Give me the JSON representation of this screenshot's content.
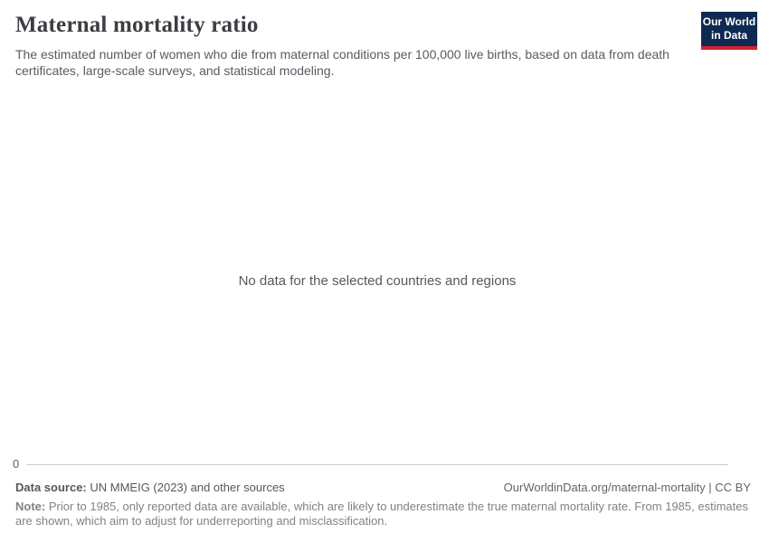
{
  "header": {
    "title": "Maternal mortality ratio",
    "subtitle": "The estimated number of women who die from maternal conditions per 100,000 live births, based on data from death certificates, large-scale surveys, and statistical modeling."
  },
  "logo": {
    "line1": "Our World",
    "line2": "in Data",
    "background_color": "#0e2a52",
    "accent_color": "#d2232f"
  },
  "chart": {
    "empty_message": "No data for the selected countries and regions",
    "y_axis_tick": "0",
    "axis_line_color": "#cccccc"
  },
  "footer": {
    "data_source_label": "Data source:",
    "data_source_value": "UN MMEIG (2023) and other sources",
    "citation": "OurWorldinData.org/maternal-mortality | CC BY",
    "note_label": "Note:",
    "note_text": "Prior to 1985, only reported data are available, which are likely to underestimate the true maternal mortality rate. From 1985, estimates are shown, which aim to adjust for underreporting and misclassification."
  },
  "chart_data": {
    "type": "line",
    "title": "Maternal mortality ratio",
    "x": [],
    "series": [],
    "y_ticks": [
      0
    ],
    "ylim": [
      0,
      null
    ],
    "grid": false,
    "legend": "none",
    "annotations": [
      "No data for the selected countries and regions"
    ]
  }
}
